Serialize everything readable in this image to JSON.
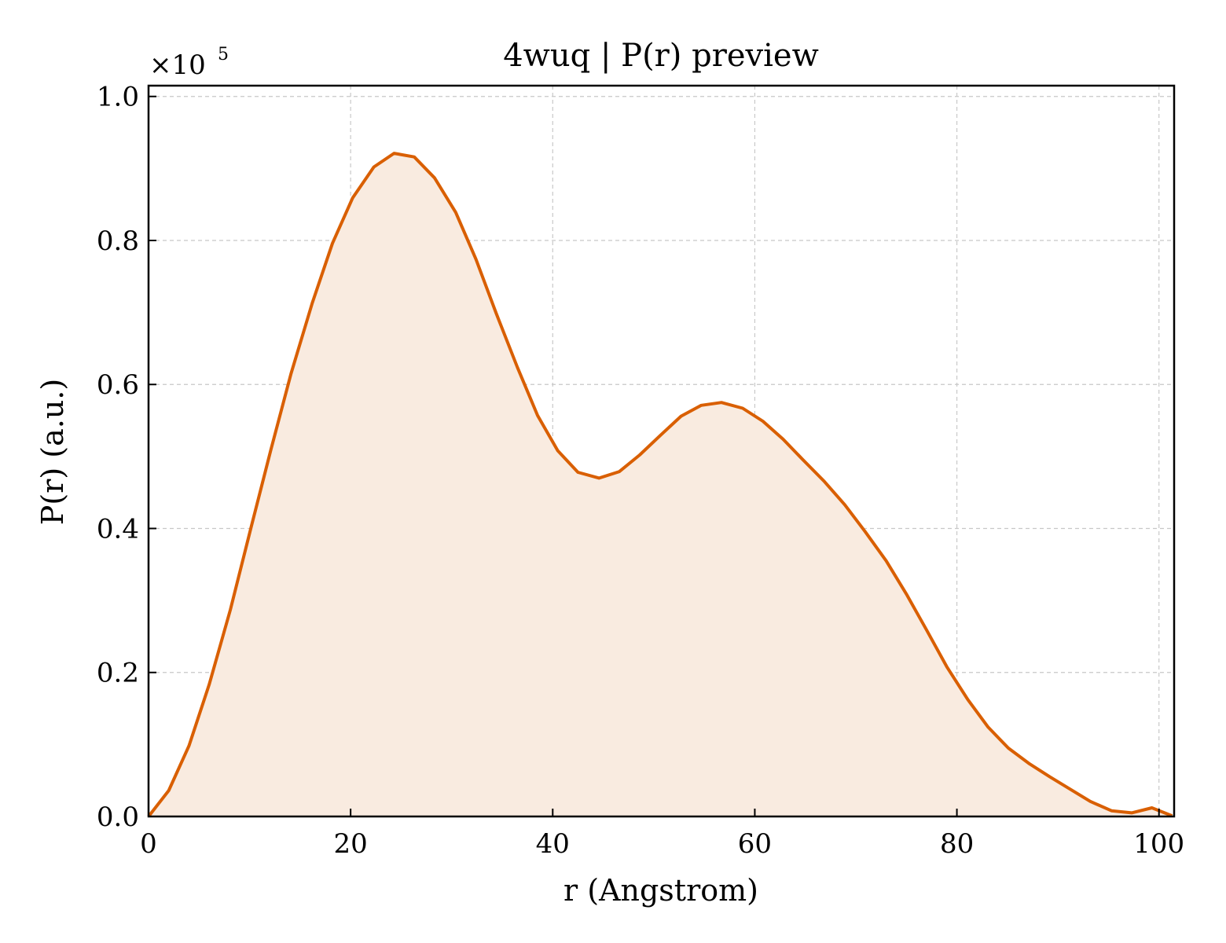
{
  "chart_data": {
    "type": "area",
    "title": "4wuq | P(r) preview",
    "xlabel": "r (Angstrom)",
    "ylabel": "P(r) (a.u.)",
    "y_multiplier_label": "×10",
    "y_multiplier_exponent": "5",
    "xlim": [
      0,
      101.5
    ],
    "ylim": [
      0,
      1.015
    ],
    "xticks": [
      0,
      20,
      40,
      60,
      80,
      100
    ],
    "xtick_labels": [
      "0",
      "20",
      "40",
      "60",
      "80",
      "100"
    ],
    "yticks": [
      0.0,
      0.2,
      0.4,
      0.6,
      0.8,
      1.0
    ],
    "ytick_labels": [
      "0.0",
      "0.2",
      "0.4",
      "0.6",
      "0.8",
      "1.0"
    ],
    "grid": true,
    "line_color": "#d95f02",
    "fill_color": "#f9ebe0",
    "series": [
      {
        "x": [
          0,
          2,
          4,
          6,
          8.1,
          10.1,
          12.1,
          14.1,
          16.2,
          18.2,
          20.2,
          22.3,
          24.3,
          26.3,
          28.3,
          30.4,
          32.4,
          34.4,
          36.5,
          38.5,
          40.5,
          42.5,
          44.6,
          46.6,
          48.6,
          50.7,
          52.7,
          54.7,
          56.7,
          58.8,
          60.8,
          62.8,
          64.8,
          66.9,
          68.9,
          70.9,
          73,
          75,
          77,
          79,
          81.1,
          83.1,
          85.1,
          87.2,
          89.2,
          91.2,
          93.2,
          95.3,
          97.3,
          99.3,
          101.3
        ],
        "y": [
          0.0,
          0.036,
          0.098,
          0.183,
          0.287,
          0.399,
          0.509,
          0.615,
          0.713,
          0.796,
          0.859,
          0.902,
          0.921,
          0.916,
          0.887,
          0.839,
          0.774,
          0.699,
          0.624,
          0.557,
          0.508,
          0.478,
          0.47,
          0.479,
          0.502,
          0.53,
          0.556,
          0.571,
          0.575,
          0.567,
          0.549,
          0.524,
          0.495,
          0.465,
          0.433,
          0.396,
          0.355,
          0.309,
          0.259,
          0.208,
          0.162,
          0.124,
          0.095,
          0.073,
          0.055,
          0.038,
          0.021,
          0.008,
          0.005,
          0.012,
          0.001
        ]
      }
    ]
  }
}
